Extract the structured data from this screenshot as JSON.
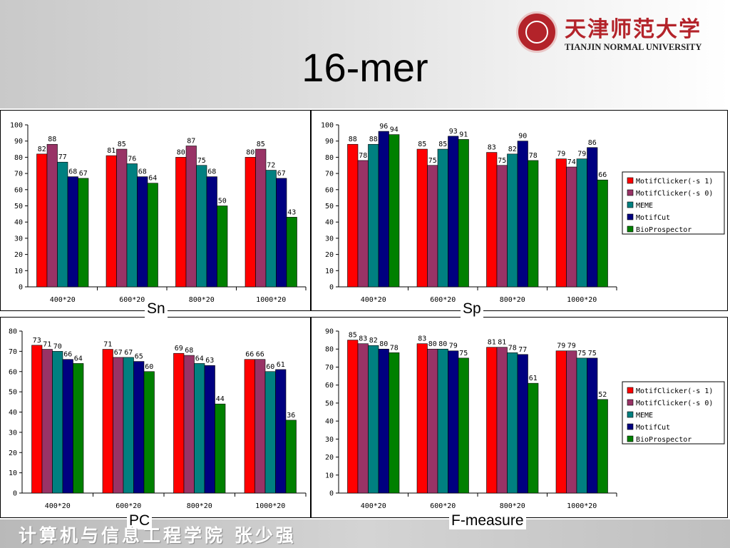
{
  "slide": {
    "title": "16-mer",
    "logo_cn": "天津师范大学",
    "logo_en": "TIANJIN NORMAL UNIVERSITY",
    "footer": "计算机与信息工程学院   张少强"
  },
  "colors": {
    "MotifClicker(-s 1)": "#ff0000",
    "MotifClicker(-s 0)": "#993366",
    "MEME": "#008080",
    "MotifCut": "#000080",
    "BioProspector": "#008000"
  },
  "chart_data": [
    {
      "type": "bar",
      "caption": "Sn",
      "categories": [
        "400*20",
        "600*20",
        "800*20",
        "1000*20"
      ],
      "ylim": [
        0,
        100
      ],
      "ytick_step": 10,
      "legend": null,
      "series": [
        {
          "name": "MotifClicker(-s 1)",
          "values": [
            82,
            81,
            80,
            80
          ]
        },
        {
          "name": "MotifClicker(-s 0)",
          "values": [
            88,
            85,
            87,
            85
          ]
        },
        {
          "name": "MEME",
          "values": [
            77,
            76,
            75,
            72
          ]
        },
        {
          "name": "MotifCut",
          "values": [
            68,
            68,
            68,
            67
          ]
        },
        {
          "name": "BioProspector",
          "values": [
            67,
            64,
            50,
            43
          ]
        }
      ]
    },
    {
      "type": "bar",
      "caption": "Sp",
      "categories": [
        "400*20",
        "600*20",
        "800*20",
        "1000*20"
      ],
      "ylim": [
        0,
        100
      ],
      "ytick_step": 10,
      "legend": "right",
      "series": [
        {
          "name": "MotifClicker(-s 1)",
          "values": [
            88,
            85,
            83,
            79
          ]
        },
        {
          "name": "MotifClicker(-s 0)",
          "values": [
            78,
            75,
            75,
            74
          ]
        },
        {
          "name": "MEME",
          "values": [
            88,
            85,
            82,
            79
          ]
        },
        {
          "name": "MotifCut",
          "values": [
            96,
            93,
            90,
            86
          ]
        },
        {
          "name": "BioProspector",
          "values": [
            94,
            91,
            78,
            66
          ]
        }
      ]
    },
    {
      "type": "bar",
      "caption": "PC",
      "categories": [
        "400*20",
        "600*20",
        "800*20",
        "1000*20"
      ],
      "ylim": [
        0,
        80
      ],
      "ytick_step": 10,
      "legend": null,
      "series": [
        {
          "name": "MotifClicker(-s 1)",
          "values": [
            73,
            71,
            69,
            66
          ]
        },
        {
          "name": "MotifClicker(-s 0)",
          "values": [
            71,
            67,
            68,
            66
          ]
        },
        {
          "name": "MEME",
          "values": [
            70,
            67,
            64,
            60
          ]
        },
        {
          "name": "MotifCut",
          "values": [
            66,
            65,
            63,
            61
          ]
        },
        {
          "name": "BioProspector",
          "values": [
            64,
            60,
            44,
            36
          ]
        }
      ]
    },
    {
      "type": "bar",
      "caption": "F-measure",
      "categories": [
        "400*20",
        "600*20",
        "800*20",
        "1000*20"
      ],
      "ylim": [
        0,
        90
      ],
      "ytick_step": 10,
      "legend": "right",
      "series": [
        {
          "name": "MotifClicker(-s 1)",
          "values": [
            85,
            83,
            81,
            79
          ]
        },
        {
          "name": "MotifClicker(-s 0)",
          "values": [
            83,
            80,
            81,
            79
          ]
        },
        {
          "name": "MEME",
          "values": [
            82,
            80,
            78,
            75
          ]
        },
        {
          "name": "MotifCut",
          "values": [
            80,
            79,
            77,
            75
          ]
        },
        {
          "name": "BioProspector",
          "values": [
            78,
            75,
            61,
            52
          ]
        }
      ]
    }
  ]
}
